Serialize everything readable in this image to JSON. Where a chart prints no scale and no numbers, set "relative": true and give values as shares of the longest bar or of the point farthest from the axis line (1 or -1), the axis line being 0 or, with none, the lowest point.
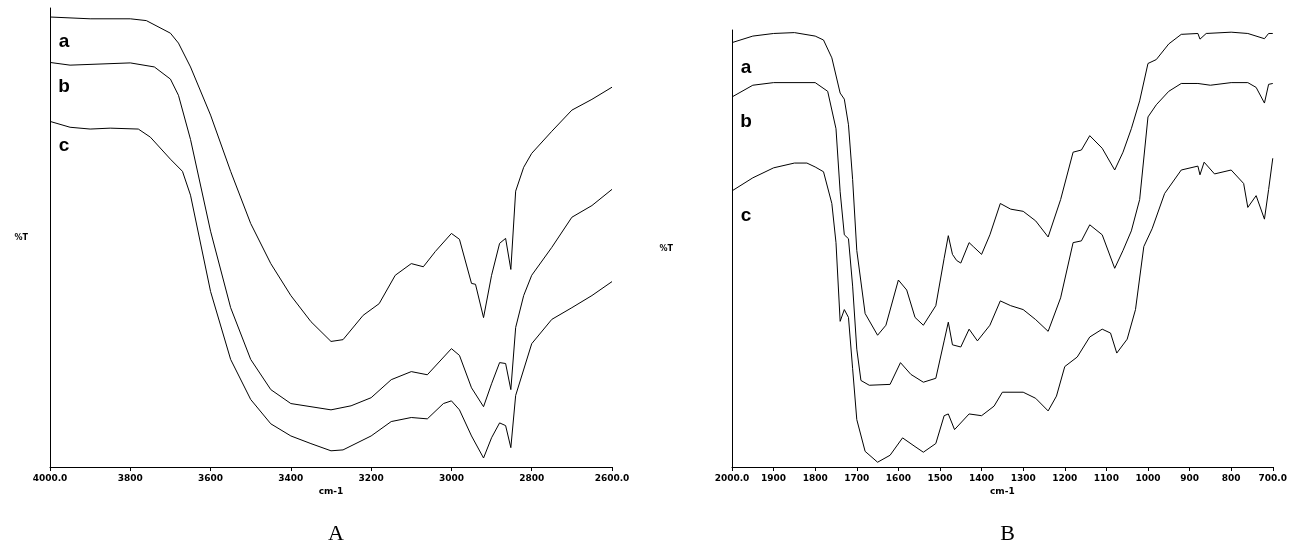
{
  "chart_data": [
    {
      "type": "line",
      "title": "A",
      "xlabel": "cm-1",
      "ylabel": "%T",
      "relative": true,
      "marker": "none",
      "xlim": [
        4000,
        2600
      ],
      "xticks": [
        {
          "value": 4000,
          "label": "4000.0"
        },
        3800,
        3600,
        3400,
        3200,
        3000,
        2800,
        {
          "value": 2600,
          "label": "2600.0"
        }
      ],
      "series": [
        {
          "name": "a",
          "color": "#000000",
          "x": [
            4000,
            3900,
            3800,
            3760,
            3700,
            3680,
            3650,
            3600,
            3550,
            3500,
            3450,
            3400,
            3350,
            3300,
            3270,
            3220,
            3180,
            3140,
            3100,
            3070,
            3040,
            3000,
            2980,
            2950,
            2940,
            2920,
            2900,
            2880,
            2865,
            2852,
            2840,
            2820,
            2800,
            2750,
            2700,
            2650,
            2600
          ],
          "values": [
            1.0,
            0.996,
            0.996,
            0.992,
            0.964,
            0.942,
            0.889,
            0.782,
            0.657,
            0.541,
            0.452,
            0.381,
            0.323,
            0.279,
            0.283,
            0.337,
            0.363,
            0.426,
            0.452,
            0.445,
            0.479,
            0.519,
            0.506,
            0.408,
            0.406,
            0.332,
            0.426,
            0.497,
            0.508,
            0.439,
            0.613,
            0.666,
            0.697,
            0.746,
            0.793,
            0.817,
            0.844
          ]
        },
        {
          "name": "b",
          "color": "#000000",
          "x": [
            4000,
            3950,
            3800,
            3740,
            3700,
            3680,
            3650,
            3600,
            3550,
            3500,
            3450,
            3400,
            3300,
            3250,
            3200,
            3150,
            3100,
            3060,
            3000,
            2980,
            2950,
            2920,
            2900,
            2880,
            2865,
            2852,
            2840,
            2820,
            2800,
            2750,
            2700,
            2650,
            2600
          ],
          "values": [
            0.899,
            0.893,
            0.898,
            0.889,
            0.862,
            0.826,
            0.728,
            0.524,
            0.354,
            0.239,
            0.172,
            0.141,
            0.127,
            0.136,
            0.154,
            0.194,
            0.212,
            0.205,
            0.263,
            0.248,
            0.176,
            0.134,
            0.185,
            0.232,
            0.23,
            0.172,
            0.31,
            0.381,
            0.426,
            0.488,
            0.555,
            0.581,
            0.617
          ]
        },
        {
          "name": "c",
          "color": "#000000",
          "x": [
            4000,
            3950,
            3900,
            3850,
            3780,
            3750,
            3700,
            3670,
            3650,
            3600,
            3550,
            3500,
            3450,
            3400,
            3350,
            3300,
            3270,
            3200,
            3150,
            3100,
            3060,
            3020,
            3000,
            2980,
            2950,
            2920,
            2900,
            2880,
            2865,
            2852,
            2840,
            2800,
            2750,
            2700,
            2650,
            2600
          ],
          "values": [
            0.768,
            0.755,
            0.751,
            0.753,
            0.751,
            0.733,
            0.684,
            0.657,
            0.604,
            0.39,
            0.239,
            0.15,
            0.096,
            0.069,
            0.052,
            0.036,
            0.038,
            0.069,
            0.101,
            0.11,
            0.107,
            0.141,
            0.147,
            0.127,
            0.069,
            0.02,
            0.065,
            0.098,
            0.092,
            0.043,
            0.159,
            0.274,
            0.328,
            0.354,
            0.381,
            0.412
          ]
        }
      ]
    },
    {
      "type": "line",
      "title": "B",
      "xlabel": "cm-1",
      "ylabel": "%T",
      "relative": true,
      "marker": "none",
      "xlim": [
        2000,
        700
      ],
      "xticks": [
        {
          "value": 2000,
          "label": "2000.0"
        },
        1900,
        1800,
        1700,
        1600,
        1500,
        1400,
        1300,
        1200,
        1100,
        1000,
        900,
        800,
        {
          "value": 700,
          "label": "700.0"
        }
      ],
      "series": [
        {
          "name": "a",
          "color": "#000000",
          "x": [
            2000,
            1950,
            1900,
            1850,
            1800,
            1780,
            1760,
            1740,
            1730,
            1720,
            1710,
            1700,
            1680,
            1650,
            1630,
            1600,
            1580,
            1560,
            1540,
            1510,
            1490,
            1480,
            1470,
            1460,
            1450,
            1430,
            1420,
            1400,
            1380,
            1355,
            1330,
            1300,
            1270,
            1240,
            1210,
            1180,
            1160,
            1140,
            1110,
            1080,
            1060,
            1040,
            1020,
            1000,
            980,
            950,
            920,
            880,
            875,
            860,
            800,
            760,
            720,
            710,
            700
          ],
          "values": [
            0.976,
            0.991,
            0.997,
            0.999,
            0.991,
            0.982,
            0.941,
            0.86,
            0.846,
            0.787,
            0.661,
            0.498,
            0.353,
            0.303,
            0.326,
            0.43,
            0.407,
            0.344,
            0.326,
            0.371,
            0.48,
            0.532,
            0.489,
            0.475,
            0.469,
            0.516,
            0.507,
            0.489,
            0.534,
            0.606,
            0.593,
            0.588,
            0.566,
            0.529,
            0.615,
            0.724,
            0.729,
            0.762,
            0.733,
            0.683,
            0.724,
            0.778,
            0.842,
            0.928,
            0.937,
            0.973,
            0.995,
            0.997,
            0.984,
            0.997,
            1.0,
            0.997,
            0.985,
            0.997,
            0.997
          ]
        },
        {
          "name": "b",
          "color": "#000000",
          "x": [
            2000,
            1950,
            1900,
            1800,
            1770,
            1750,
            1740,
            1730,
            1720,
            1710,
            1700,
            1690,
            1670,
            1620,
            1595,
            1570,
            1540,
            1510,
            1490,
            1480,
            1470,
            1450,
            1430,
            1410,
            1380,
            1355,
            1330,
            1300,
            1270,
            1240,
            1210,
            1180,
            1160,
            1140,
            1110,
            1080,
            1060,
            1040,
            1020,
            1000,
            980,
            950,
            920,
            880,
            850,
            800,
            760,
            740,
            720,
            710,
            700
          ],
          "values": [
            0.851,
            0.878,
            0.884,
            0.884,
            0.864,
            0.778,
            0.633,
            0.534,
            0.525,
            0.416,
            0.271,
            0.199,
            0.188,
            0.19,
            0.24,
            0.213,
            0.195,
            0.204,
            0.29,
            0.333,
            0.281,
            0.276,
            0.317,
            0.29,
            0.326,
            0.382,
            0.371,
            0.362,
            0.339,
            0.312,
            0.389,
            0.516,
            0.52,
            0.557,
            0.534,
            0.457,
            0.498,
            0.543,
            0.615,
            0.805,
            0.833,
            0.864,
            0.882,
            0.882,
            0.878,
            0.884,
            0.884,
            0.873,
            0.837,
            0.88,
            0.882
          ]
        },
        {
          "name": "c",
          "color": "#000000",
          "x": [
            2000,
            1950,
            1900,
            1850,
            1820,
            1800,
            1780,
            1760,
            1750,
            1740,
            1730,
            1720,
            1710,
            1700,
            1680,
            1650,
            1620,
            1590,
            1560,
            1540,
            1510,
            1490,
            1480,
            1465,
            1430,
            1400,
            1370,
            1350,
            1300,
            1270,
            1240,
            1220,
            1200,
            1170,
            1140,
            1110,
            1090,
            1075,
            1050,
            1030,
            1010,
            990,
            960,
            920,
            880,
            875,
            865,
            840,
            800,
            770,
            760,
            740,
            720,
            710,
            700
          ],
          "values": [
            0.635,
            0.665,
            0.688,
            0.699,
            0.699,
            0.69,
            0.679,
            0.606,
            0.516,
            0.335,
            0.362,
            0.344,
            0.226,
            0.109,
            0.036,
            0.011,
            0.027,
            0.067,
            0.047,
            0.034,
            0.054,
            0.118,
            0.122,
            0.086,
            0.122,
            0.118,
            0.14,
            0.172,
            0.172,
            0.158,
            0.129,
            0.163,
            0.231,
            0.253,
            0.299,
            0.317,
            0.308,
            0.262,
            0.294,
            0.362,
            0.507,
            0.548,
            0.629,
            0.683,
            0.692,
            0.672,
            0.701,
            0.674,
            0.683,
            0.652,
            0.597,
            0.624,
            0.57,
            0.638,
            0.71
          ]
        }
      ]
    }
  ]
}
